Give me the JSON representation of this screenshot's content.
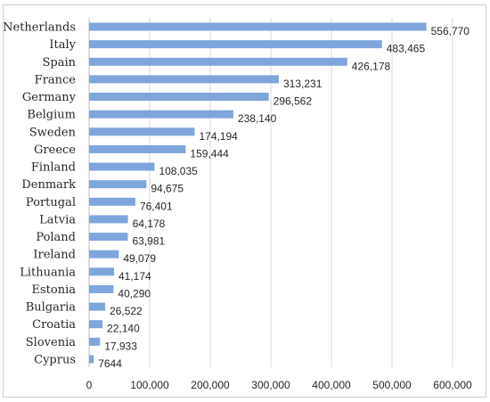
{
  "chart_data": {
    "type": "bar",
    "orientation": "horizontal",
    "categories": [
      "Netherlands",
      "Italy",
      "Spain",
      "France",
      "Germany",
      "Belgium",
      "Sweden",
      "Greece",
      "Finland",
      "Denmark",
      "Portugal",
      "Latvia",
      "Poland",
      "Ireland",
      "Lithuania",
      "Estonia",
      "Bulgaria",
      "Croatia",
      "Slovenia",
      "Cyprus"
    ],
    "values": [
      556770,
      483465,
      426178,
      313231,
      296562,
      238140,
      174194,
      159444,
      108035,
      94675,
      76401,
      64178,
      63981,
      49079,
      41174,
      40290,
      26522,
      22140,
      17933,
      7644
    ],
    "value_labels": [
      "556,770",
      "483,465",
      "426,178",
      "313,231",
      "296,562",
      "238,140",
      "174,194",
      "159,444",
      "108,035",
      "94,675",
      "76,401",
      "64,178",
      "63,981",
      "49,079",
      "41,174",
      "40,290",
      "26,522",
      "22,140",
      "17,933",
      "7644"
    ],
    "xticks": [
      0,
      100000,
      200000,
      300000,
      400000,
      500000,
      600000
    ],
    "xtick_labels": [
      "0",
      "100,000",
      "200,000",
      "300,000",
      "400,000",
      "500,000",
      "600,000"
    ],
    "xlim": [
      0,
      600000
    ],
    "grid": true,
    "bar_color": "#7ea6dc",
    "title": "",
    "xlabel": "",
    "ylabel": ""
  }
}
